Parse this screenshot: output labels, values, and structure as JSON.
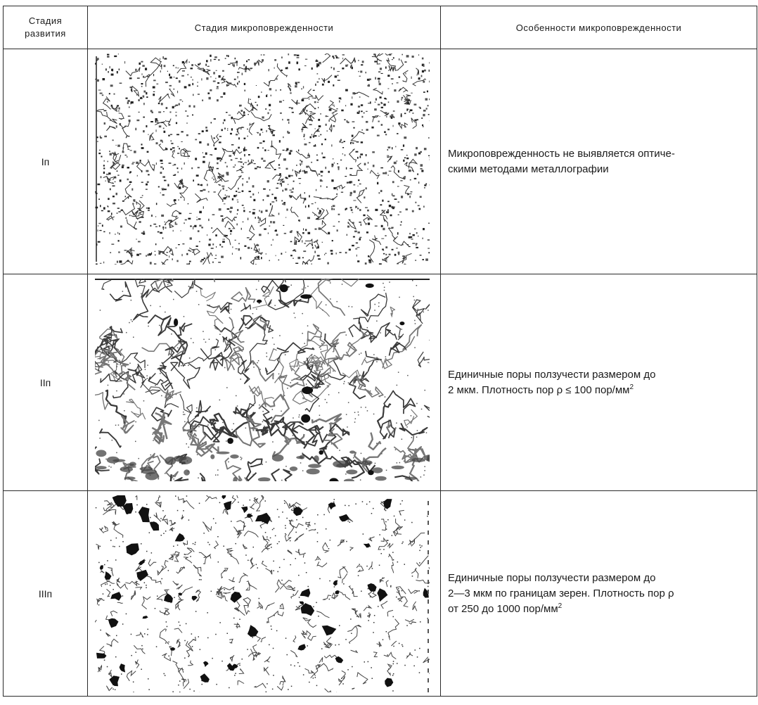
{
  "header": {
    "stage_line1": "Стадия",
    "stage_line2": "развития",
    "image_col": "Стадия микроповрежденности",
    "features_col": "Особенности микроповрежденности"
  },
  "rows": [
    {
      "stage": "Iп",
      "desc_line1": "Микроповрежденность не выявляется оптиче-",
      "desc_line2": "скими методами металлографии",
      "image": "micrograph-light-dispersed"
    },
    {
      "stage": "IIп",
      "desc_line1": "Единичные поры ползучести размером до",
      "desc_line2": "2 мкм. Плотность пор ρ ≤ 100 пор/мм",
      "desc_sup": "2",
      "image": "micrograph-grain-boundaries"
    },
    {
      "stage": "IIIп",
      "desc_line1": "Единичные поры ползучести размером до",
      "desc_line2": "2—3 мкм по границам зерен. Плотность пор ρ",
      "desc_line3": "от 250 до 1000 пор/мм",
      "desc_sup": "2",
      "image": "micrograph-pores"
    }
  ]
}
